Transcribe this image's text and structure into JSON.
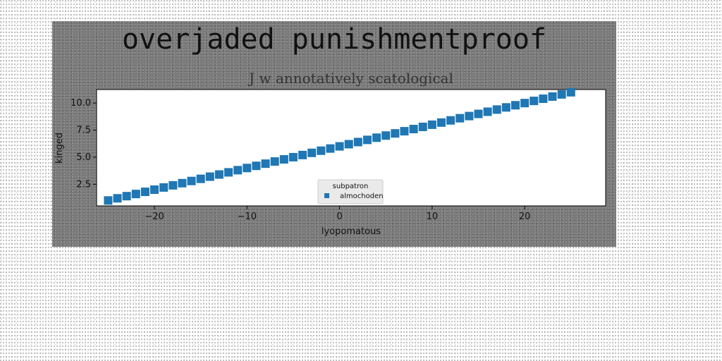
{
  "figure_title": "overjaded punishmentproof",
  "chart_data": {
    "type": "scatter",
    "title": "J w annotatively scatological",
    "xlabel": "lyopomatous",
    "ylabel": "kinged",
    "xlim": [
      -26.25,
      28.75
    ],
    "ylim": [
      0.5,
      11.25
    ],
    "xticks": [
      -20,
      -10,
      0,
      10,
      20
    ],
    "xtick_labels": [
      "−20",
      "−10",
      "0",
      "10",
      "20"
    ],
    "yticks": [
      2.5,
      5.0,
      7.5,
      10.0
    ],
    "ytick_labels": [
      "2.5",
      "5.0",
      "7.5",
      "10.0"
    ],
    "grid": false,
    "legend": {
      "title": "subpatron",
      "position": "lower-center"
    },
    "series": [
      {
        "name": "almochoden",
        "color": "#1f77b4",
        "marker": "square",
        "x": [
          -25,
          -24,
          -23,
          -22,
          -21,
          -20,
          -19,
          -18,
          -17,
          -16,
          -15,
          -14,
          -13,
          -12,
          -11,
          -10,
          -9,
          -8,
          -7,
          -6,
          -5,
          -4,
          -3,
          -2,
          -1,
          0,
          1,
          2,
          3,
          4,
          5,
          6,
          7,
          8,
          9,
          10,
          11,
          12,
          13,
          14,
          15,
          16,
          17,
          18,
          19,
          20,
          21,
          22,
          23,
          24,
          25
        ],
        "y": [
          1.0,
          1.2,
          1.4,
          1.6,
          1.8,
          2.0,
          2.2,
          2.4,
          2.6,
          2.8,
          3.0,
          3.2,
          3.4,
          3.6,
          3.8,
          4.0,
          4.2,
          4.4,
          4.6,
          4.8,
          5.0,
          5.2,
          5.4,
          5.6,
          5.8,
          6.0,
          6.2,
          6.4,
          6.6,
          6.8,
          7.0,
          7.2,
          7.4,
          7.6,
          7.8,
          8.0,
          8.2,
          8.4,
          8.6,
          8.8,
          9.0,
          9.2,
          9.4,
          9.6,
          9.8,
          10.0,
          10.2,
          10.4,
          10.6,
          10.8,
          11.0
        ]
      }
    ]
  }
}
